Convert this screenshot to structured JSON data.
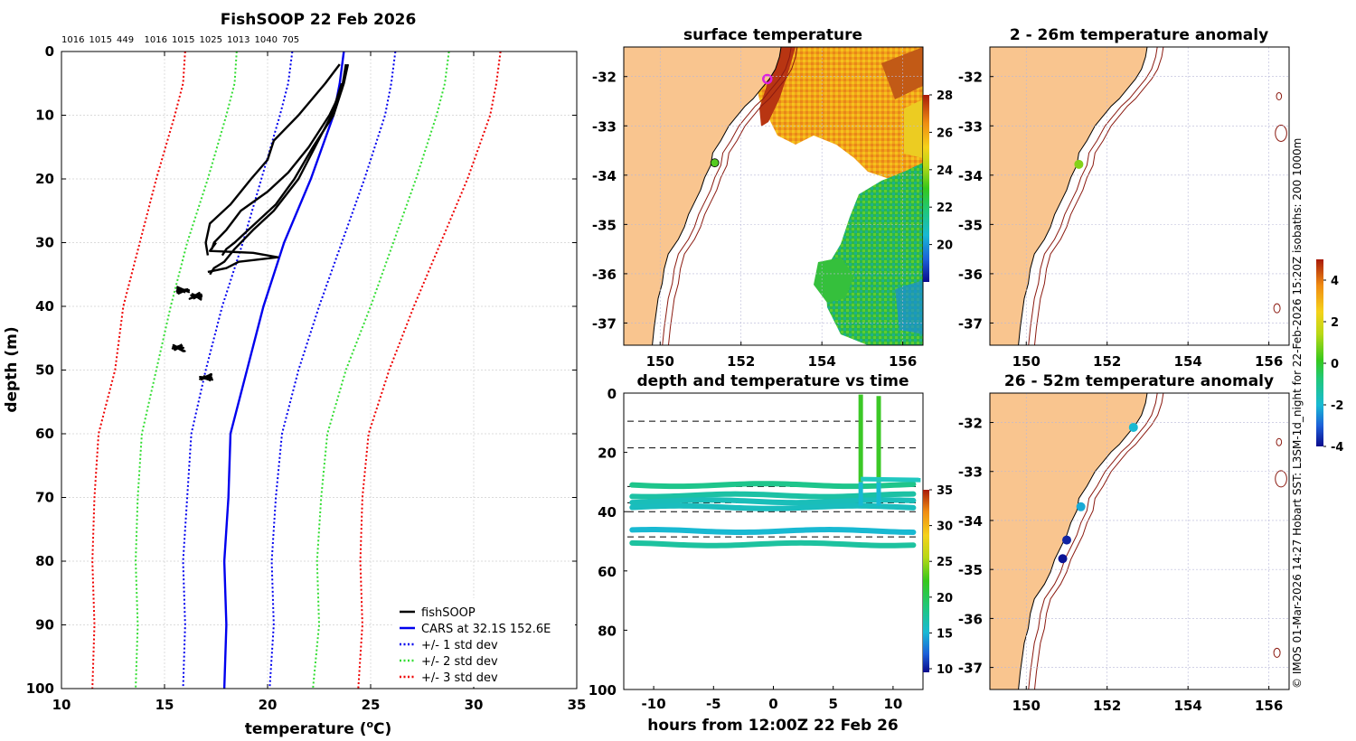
{
  "figure_title": "FishSOOP 22 Feb 2026",
  "footnote": "© IMOS 01-Mar-2026 14:27 Hobart SST: L3SM-1d_night for 22-Feb-2026 15:20Z isobaths: 200  1000m",
  "chart_data": [
    {
      "type": "line",
      "id": "profile",
      "title": "FishSOOP 22 Feb 2026",
      "top_labels": [
        "1016",
        "1015",
        "449",
        "1016",
        "1015",
        "1025",
        "1013",
        "1040",
        "705"
      ],
      "xlabel": "temperature (",
      "xlabel_sup": "o",
      "xlabel_tail": "C)",
      "ylabel": "depth (m)",
      "xlim": [
        10,
        35
      ],
      "ylim": [
        0,
        100
      ],
      "y_reversed": true,
      "xticks": [
        10,
        15,
        20,
        25,
        30,
        35
      ],
      "yticks": [
        0,
        10,
        20,
        30,
        40,
        50,
        60,
        70,
        80,
        90,
        100
      ],
      "grid": true,
      "legend_position": "bottom-right",
      "legend": [
        {
          "label": "fishSOOP",
          "color": "#000000",
          "style": "solid"
        },
        {
          "label": "CARS at 32.1S 152.6E",
          "color": "#0000ee",
          "style": "solid"
        },
        {
          "label": "+/- 1 std dev",
          "color": "#0000ee",
          "style": "dotted"
        },
        {
          "label": "+/- 2 std dev",
          "color": "#33dd33",
          "style": "dotted"
        },
        {
          "label": "+/- 3 std dev",
          "color": "#ee0000",
          "style": "dotted"
        }
      ],
      "depths": [
        0,
        5,
        10,
        20,
        30,
        40,
        50,
        60,
        70,
        80,
        90,
        100
      ],
      "cars_mean": [
        23.7,
        23.5,
        23.2,
        22.1,
        20.8,
        19.8,
        19.0,
        18.2,
        18.1,
        17.9,
        18.0,
        17.9
      ],
      "std_curves": [
        {
          "name": "-3 std",
          "color": "#ee0000",
          "values": [
            16.0,
            15.9,
            15.5,
            14.6,
            13.8,
            13.0,
            12.6,
            11.8,
            11.6,
            11.5,
            11.6,
            11.5
          ]
        },
        {
          "name": "-2 std",
          "color": "#33dd33",
          "values": [
            18.5,
            18.4,
            18.0,
            17.1,
            16.1,
            15.3,
            14.6,
            13.9,
            13.7,
            13.6,
            13.7,
            13.6
          ]
        },
        {
          "name": "-1 std",
          "color": "#0000ee",
          "values": [
            21.2,
            21.0,
            20.6,
            19.7,
            18.8,
            17.8,
            17.0,
            16.3,
            16.1,
            15.9,
            16.0,
            15.9
          ]
        },
        {
          "name": "+1 std",
          "color": "#0000ee",
          "values": [
            26.2,
            26.0,
            25.7,
            24.7,
            23.6,
            22.5,
            21.5,
            20.7,
            20.4,
            20.2,
            20.3,
            20.1
          ]
        },
        {
          "name": "+2 std",
          "color": "#33dd33",
          "values": [
            28.8,
            28.6,
            28.2,
            27.2,
            26.1,
            25.0,
            23.8,
            22.9,
            22.6,
            22.4,
            22.5,
            22.2
          ]
        },
        {
          "name": "+3 std",
          "color": "#ee0000",
          "values": [
            31.3,
            31.1,
            30.8,
            29.7,
            28.4,
            27.1,
            25.9,
            24.9,
            24.6,
            24.5,
            24.6,
            24.4
          ]
        }
      ],
      "fishsoop_profiles": [
        {
          "depth": [
            2,
            5,
            10,
            14,
            17,
            20,
            24,
            27,
            30,
            32
          ],
          "temp": [
            23.5,
            22.8,
            21.5,
            20.3,
            20.0,
            19.2,
            18.2,
            17.2,
            17.0,
            17.1
          ]
        },
        {
          "depth": [
            2,
            6,
            10,
            15,
            19,
            22,
            25,
            28,
            30,
            31
          ],
          "temp": [
            23.8,
            23.6,
            23.0,
            22.0,
            21.0,
            20.0,
            18.7,
            18.0,
            17.4,
            17.3
          ]
        },
        {
          "depth": [
            2,
            5,
            10,
            15,
            20,
            24,
            27,
            30,
            31,
            32
          ],
          "temp": [
            23.9,
            23.7,
            23.2,
            22.2,
            21.3,
            20.4,
            19.4,
            18.4,
            18.0,
            17.8
          ]
        },
        {
          "depth": [
            5,
            10,
            15,
            20,
            25,
            28,
            31,
            33,
            34,
            35
          ],
          "temp": [
            23.6,
            23.1,
            22.3,
            21.5,
            20.3,
            19.3,
            18.4,
            17.9,
            17.4,
            17.2
          ]
        },
        {
          "depth": [
            30,
            31.3,
            31.6,
            32.3,
            33.0,
            34.0,
            34.6
          ],
          "temp": [
            17.5,
            17.2,
            19.3,
            20.5,
            18.6,
            18.0,
            17.1
          ]
        }
      ],
      "fishsoop_clusters": [
        {
          "depth": 37.5,
          "temp": 15.8
        },
        {
          "depth": 38.4,
          "temp": 16.6
        },
        {
          "depth": 46.5,
          "temp": 15.6
        },
        {
          "depth": 51.2,
          "temp": 17.1
        }
      ]
    },
    {
      "type": "heatmap",
      "id": "sst_map",
      "title": "surface temperature",
      "xlim": [
        149.1,
        156.5
      ],
      "ylim": [
        -37.45,
        -31.4
      ],
      "xticks": [
        150,
        152,
        154,
        156
      ],
      "yticks": [
        -32,
        -33,
        -34,
        -35,
        -36,
        -37
      ],
      "colorbar": {
        "min": 18,
        "max": 28,
        "ticks": [
          20,
          22,
          24,
          26,
          28
        ]
      },
      "station_markers": [
        {
          "lon": 152.65,
          "lat": -32.05,
          "color": "#dd22dd"
        },
        {
          "lon": 151.35,
          "lat": -33.75,
          "color": "#55cc22"
        }
      ]
    },
    {
      "type": "scatter",
      "id": "depth_time",
      "title": "depth and temperature vs time",
      "xlabel": "hours from 12:00Z 22 Feb 26",
      "xlim": [
        -12.5,
        12.5
      ],
      "ylim": [
        0,
        100
      ],
      "y_reversed": true,
      "xticks": [
        -10,
        -5,
        0,
        5,
        10
      ],
      "yticks": [
        0,
        20,
        40,
        60,
        80,
        100
      ],
      "colorbar": {
        "min": 9.5,
        "max": 35,
        "ticks": [
          10,
          15,
          20,
          25,
          30,
          35
        ]
      },
      "dashed_depths": [
        9.5,
        18.5,
        31.5,
        37.0,
        40.0,
        48.5
      ],
      "bands": [
        {
          "depth": 31.0,
          "temp": 18.0
        },
        {
          "depth": 34.5,
          "temp": 17.0
        },
        {
          "depth": 36.5,
          "temp": 16.2
        },
        {
          "depth": 38.5,
          "temp": 16.0
        },
        {
          "depth": 46.5,
          "temp": 15.2
        },
        {
          "depth": 51.0,
          "temp": 17.2
        }
      ],
      "casts": [
        {
          "hour": 7.3,
          "top": 0.5
        },
        {
          "hour": 8.8,
          "top": 1.0
        }
      ]
    },
    {
      "type": "scatter",
      "id": "anomaly_2_26",
      "title": "2 - 26m temperature anomaly",
      "xlim": [
        149.1,
        156.5
      ],
      "ylim": [
        -37.45,
        -31.4
      ],
      "xticks": [
        150,
        152,
        154,
        156
      ],
      "yticks": [
        -32,
        -33,
        -34,
        -35,
        -36,
        -37
      ],
      "points": [
        {
          "lon": 151.3,
          "lat": -33.78,
          "anom": 0.9
        }
      ]
    },
    {
      "type": "scatter",
      "id": "anomaly_26_52",
      "title": "26 - 52m temperature anomaly",
      "xlim": [
        149.1,
        156.5
      ],
      "ylim": [
        -37.45,
        -31.4
      ],
      "xticks": [
        150,
        152,
        154,
        156
      ],
      "yticks": [
        -32,
        -33,
        -34,
        -35,
        -36,
        -37
      ],
      "colorbar": {
        "min": -4,
        "max": 5,
        "ticks": [
          -4,
          -2,
          0,
          2,
          4
        ]
      },
      "points": [
        {
          "lon": 152.65,
          "lat": -32.1,
          "anom": -2.0
        },
        {
          "lon": 151.35,
          "lat": -33.72,
          "anom": -2.2
        },
        {
          "lon": 151.0,
          "lat": -34.4,
          "anom": -3.7
        },
        {
          "lon": 150.9,
          "lat": -34.78,
          "anom": -3.9
        }
      ]
    }
  ]
}
